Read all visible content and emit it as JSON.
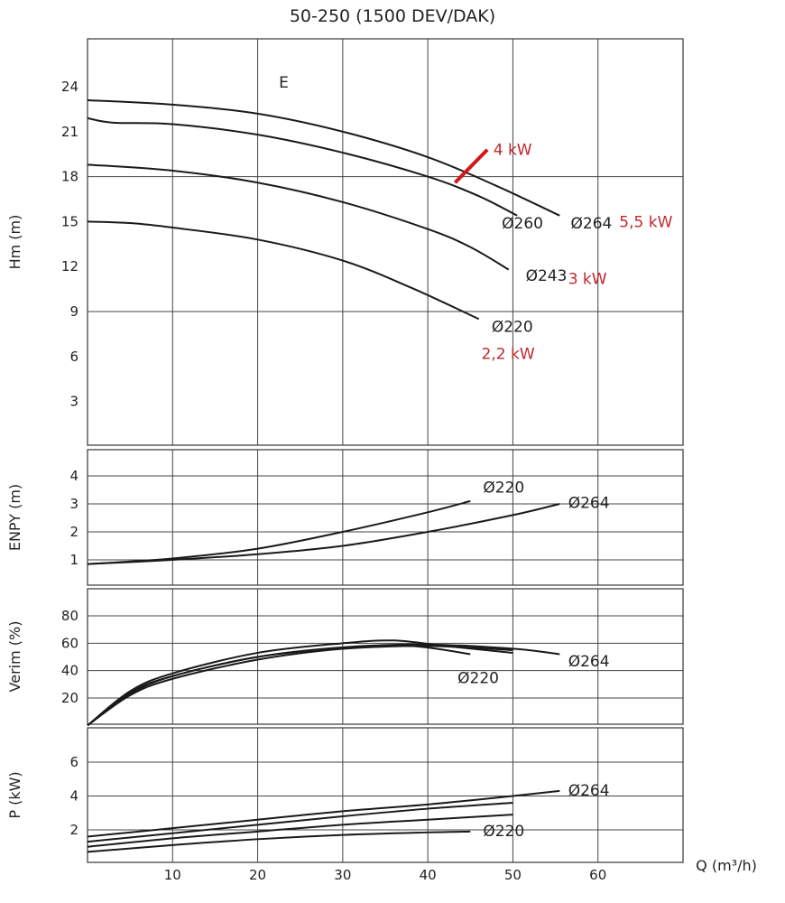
{
  "title": "50-250 (1500 DEV/DAK)",
  "chart_data": [
    {
      "id": "head",
      "type": "line",
      "ylabel": "Hm (m)",
      "xlabel": "",
      "xlim": [
        0,
        70
      ],
      "ylim": [
        0,
        26
      ],
      "x_gridlines": [
        10,
        20,
        30,
        40,
        50,
        60
      ],
      "y_ticks": [
        3,
        6,
        9,
        12,
        15,
        18,
        21,
        24
      ],
      "y_gridlines": [
        9,
        18
      ],
      "annotations": [
        {
          "text": "E",
          "x": 22.5,
          "y": 24.3
        },
        {
          "text": "4 kW",
          "x": 47.7,
          "y": 19.8,
          "color": "#c0272d"
        },
        {
          "text": "5,5 kW",
          "x": 62.5,
          "y": 15.0,
          "color": "#c0272d"
        },
        {
          "text": "3 kW",
          "x": 56.5,
          "y": 11.2,
          "color": "#c0272d"
        },
        {
          "text": "2,2 kW",
          "x": 46.3,
          "y": 6.2,
          "color": "#c0272d"
        }
      ],
      "marker_4kW": [
        [
          43.2,
          17.6
        ],
        [
          47.0,
          19.8
        ]
      ],
      "series": [
        {
          "name": "Ø264",
          "label_at": [
            56.8,
            14.9
          ],
          "points": [
            [
              0,
              23.1
            ],
            [
              10,
              22.8
            ],
            [
              20,
              22.2
            ],
            [
              30,
              21.0
            ],
            [
              40,
              19.3
            ],
            [
              48,
              17.4
            ],
            [
              55.5,
              15.4
            ]
          ]
        },
        {
          "name": "Ø260",
          "label_at": [
            48.7,
            14.9
          ],
          "points": [
            [
              0,
              21.9
            ],
            [
              3,
              21.6
            ],
            [
              10,
              21.5
            ],
            [
              20,
              20.8
            ],
            [
              30,
              19.6
            ],
            [
              40,
              18.0
            ],
            [
              46,
              16.7
            ],
            [
              50.5,
              15.4
            ]
          ]
        },
        {
          "name": "Ø243",
          "label_at": [
            51.5,
            11.4
          ],
          "points": [
            [
              0,
              18.8
            ],
            [
              10,
              18.4
            ],
            [
              20,
              17.6
            ],
            [
              30,
              16.3
            ],
            [
              40,
              14.5
            ],
            [
              45,
              13.3
            ],
            [
              49.5,
              11.8
            ]
          ]
        },
        {
          "name": "Ø220",
          "label_at": [
            47.5,
            8.0
          ],
          "points": [
            [
              0,
              15.0
            ],
            [
              5,
              14.9
            ],
            [
              10,
              14.6
            ],
            [
              20,
              13.8
            ],
            [
              30,
              12.4
            ],
            [
              38,
              10.6
            ],
            [
              46,
              8.5
            ]
          ]
        }
      ]
    },
    {
      "id": "npsh",
      "type": "line",
      "ylabel": "ENPY (m)",
      "xlim": [
        0,
        70
      ],
      "ylim": [
        0,
        5
      ],
      "x_gridlines": [
        10,
        20,
        30,
        40,
        50,
        60
      ],
      "y_ticks": [
        1,
        2,
        3,
        4
      ],
      "y_gridlines": [
        1,
        2,
        3,
        4
      ],
      "series": [
        {
          "name": "Ø220",
          "label_at": [
            46.5,
            3.6
          ],
          "points": [
            [
              0,
              0.85
            ],
            [
              10,
              1.05
            ],
            [
              20,
              1.4
            ],
            [
              30,
              2.0
            ],
            [
              40,
              2.7
            ],
            [
              45,
              3.1
            ]
          ]
        },
        {
          "name": "Ø264",
          "label_at": [
            56.5,
            3.05
          ],
          "points": [
            [
              0,
              0.85
            ],
            [
              10,
              1.0
            ],
            [
              20,
              1.2
            ],
            [
              30,
              1.5
            ],
            [
              40,
              2.0
            ],
            [
              50,
              2.6
            ],
            [
              55.5,
              3.0
            ]
          ]
        }
      ]
    },
    {
      "id": "efficiency",
      "type": "line",
      "ylabel": "Verim (%)",
      "xlim": [
        0,
        70
      ],
      "ylim": [
        0,
        100
      ],
      "x_gridlines": [
        10,
        20,
        30,
        40,
        50,
        60
      ],
      "y_ticks": [
        20,
        40,
        60,
        80
      ],
      "y_gridlines": [
        20,
        40,
        60,
        80
      ],
      "series": [
        {
          "name": "Ø264",
          "label_at": [
            56.5,
            47
          ],
          "points": [
            [
              0,
              0
            ],
            [
              5,
              23
            ],
            [
              10,
              36
            ],
            [
              20,
              50
            ],
            [
              30,
              57
            ],
            [
              40,
              59
            ],
            [
              50,
              56
            ],
            [
              55.5,
              52
            ]
          ]
        },
        {
          "name": "",
          "points": [
            [
              0,
              0
            ],
            [
              5,
              25
            ],
            [
              10,
              38
            ],
            [
              20,
              53
            ],
            [
              30,
              60
            ],
            [
              36,
              62
            ],
            [
              42,
              58
            ],
            [
              50,
              53
            ]
          ]
        },
        {
          "name": "",
          "points": [
            [
              0,
              0
            ],
            [
              5,
              24
            ],
            [
              10,
              36
            ],
            [
              20,
              50
            ],
            [
              30,
              56
            ],
            [
              40,
              58
            ],
            [
              50,
              55
            ]
          ]
        },
        {
          "name": "Ø220",
          "label_at": [
            43.5,
            35
          ],
          "points": [
            [
              0,
              0
            ],
            [
              5,
              22
            ],
            [
              10,
              34
            ],
            [
              20,
              48
            ],
            [
              30,
              56
            ],
            [
              38,
              58
            ],
            [
              45,
              52
            ]
          ]
        }
      ]
    },
    {
      "id": "power",
      "type": "line",
      "ylabel": "P (kW)",
      "xlabel": "Q (m³/h)",
      "xlim": [
        0,
        70
      ],
      "ylim": [
        0,
        8
      ],
      "x_ticks": [
        10,
        20,
        30,
        40,
        50,
        60
      ],
      "x_gridlines": [
        10,
        20,
        30,
        40,
        50,
        60
      ],
      "y_ticks": [
        2,
        4,
        6
      ],
      "y_gridlines": [
        2,
        4,
        6
      ],
      "series": [
        {
          "name": "Ø264",
          "label_at": [
            56.5,
            4.35
          ],
          "points": [
            [
              0,
              1.6
            ],
            [
              10,
              2.1
            ],
            [
              20,
              2.6
            ],
            [
              30,
              3.1
            ],
            [
              40,
              3.5
            ],
            [
              50,
              4.0
            ],
            [
              55.5,
              4.3
            ]
          ]
        },
        {
          "name": "",
          "points": [
            [
              0,
              1.3
            ],
            [
              10,
              1.8
            ],
            [
              20,
              2.3
            ],
            [
              30,
              2.8
            ],
            [
              40,
              3.25
            ],
            [
              50,
              3.6
            ]
          ]
        },
        {
          "name": "",
          "points": [
            [
              0,
              1.0
            ],
            [
              10,
              1.5
            ],
            [
              20,
              1.9
            ],
            [
              30,
              2.3
            ],
            [
              40,
              2.6
            ],
            [
              50,
              2.9
            ]
          ]
        },
        {
          "name": "Ø220",
          "label_at": [
            46.5,
            1.95
          ],
          "points": [
            [
              0,
              0.7
            ],
            [
              10,
              1.1
            ],
            [
              20,
              1.45
            ],
            [
              30,
              1.7
            ],
            [
              40,
              1.85
            ],
            [
              45,
              1.9
            ]
          ]
        }
      ]
    }
  ]
}
